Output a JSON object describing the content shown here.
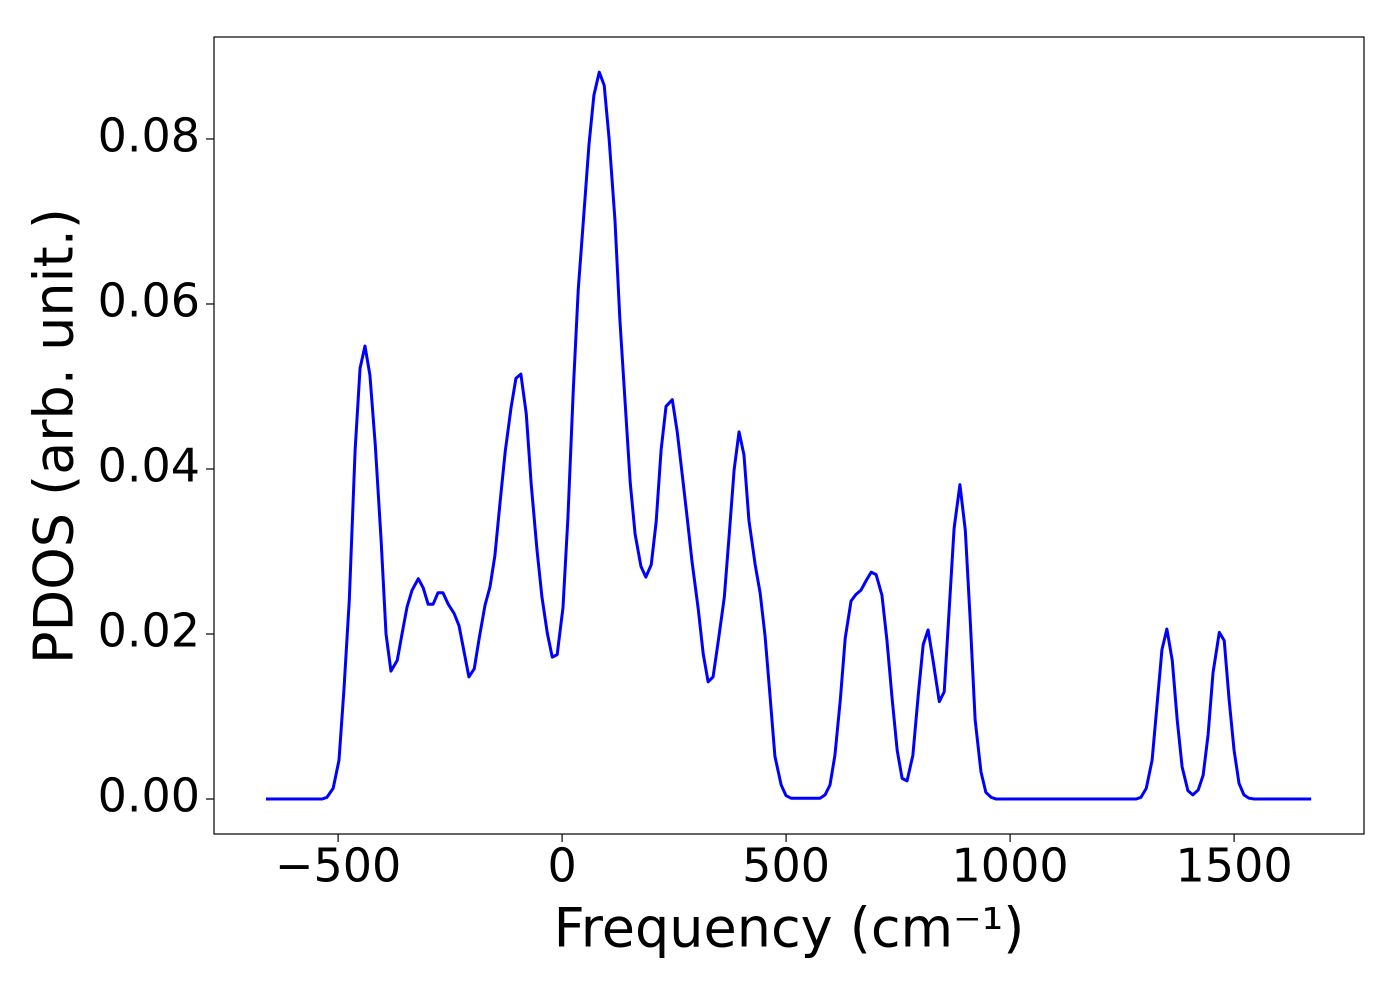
{
  "chart_data": {
    "type": "line",
    "xlabel": "Frequency (cm⁻¹)",
    "ylabel": "PDOS (arb. unit.)",
    "xlim": [
      -777,
      1790
    ],
    "ylim": [
      -0.00424,
      0.09236
    ],
    "xticks": [
      {
        "value": -500,
        "label": "−500"
      },
      0,
      500,
      1000,
      1500
    ],
    "yticks": [
      {
        "value": 0,
        "label": "0.00"
      },
      {
        "value": 0.02,
        "label": "0.02"
      },
      {
        "value": 0.04,
        "label": "0.04"
      },
      {
        "value": 0.06,
        "label": "0.06"
      },
      {
        "value": 0.08,
        "label": "0.08"
      }
    ],
    "grid": false,
    "series": [
      {
        "color": "#0000ff",
        "x": [
          -661,
          -536,
          -525,
          -511,
          -498,
          -487,
          -475,
          -462,
          -451,
          -440,
          -429,
          -417,
          -404,
          -393,
          -382,
          -368,
          -357,
          -346,
          -335,
          -321,
          -310,
          -299,
          -288,
          -277,
          -266,
          -254,
          -241,
          -230,
          -219,
          -208,
          -196,
          -185,
          -172,
          -161,
          -150,
          -138,
          -127,
          -114,
          -103,
          -92,
          -80,
          -69,
          -56,
          -45,
          -33,
          -22,
          -11,
          2,
          13,
          25,
          36,
          49,
          60,
          71,
          83,
          94,
          105,
          118,
          129,
          141,
          152,
          163,
          176,
          187,
          199,
          210,
          221,
          232,
          246,
          257,
          268,
          279,
          290,
          304,
          315,
          326,
          337,
          348,
          362,
          373,
          384,
          395,
          406,
          417,
          431,
          442,
          453,
          464,
          475,
          489,
          500,
          511,
          576,
          587,
          598,
          609,
          621,
          632,
          645,
          656,
          667,
          679,
          690,
          701,
          714,
          725,
          737,
          748,
          759,
          770,
          783,
          795,
          806,
          817,
          828,
          842,
          853,
          864,
          875,
          888,
          900,
          911,
          922,
          935,
          946,
          958,
          969,
          1281,
          1292,
          1304,
          1317,
          1328,
          1339,
          1350,
          1362,
          1373,
          1384,
          1397,
          1408,
          1420,
          1431,
          1442,
          1453,
          1467,
          1478,
          1489,
          1500,
          1511,
          1522,
          1533,
          1545,
          1672
        ],
        "values": [
          0,
          0,
          0.0002,
          0.0013,
          0.0047,
          0.0132,
          0.0241,
          0.0423,
          0.0522,
          0.0549,
          0.0514,
          0.0429,
          0.0314,
          0.02,
          0.0155,
          0.0168,
          0.0201,
          0.0233,
          0.0253,
          0.0267,
          0.0256,
          0.0236,
          0.0236,
          0.025,
          0.025,
          0.0236,
          0.0225,
          0.021,
          0.0179,
          0.0148,
          0.0158,
          0.0195,
          0.0235,
          0.0257,
          0.0295,
          0.0362,
          0.0421,
          0.0474,
          0.051,
          0.0515,
          0.0467,
          0.0382,
          0.0302,
          0.0245,
          0.0201,
          0.0172,
          0.0175,
          0.0232,
          0.0341,
          0.0496,
          0.0617,
          0.0712,
          0.0793,
          0.0853,
          0.0881,
          0.0865,
          0.08,
          0.0702,
          0.0581,
          0.0478,
          0.0384,
          0.0321,
          0.0282,
          0.0269,
          0.0284,
          0.0336,
          0.0423,
          0.0476,
          0.0484,
          0.0445,
          0.0394,
          0.0342,
          0.0288,
          0.023,
          0.0176,
          0.0142,
          0.0148,
          0.0189,
          0.0244,
          0.032,
          0.0399,
          0.0445,
          0.0417,
          0.0338,
          0.0284,
          0.025,
          0.0198,
          0.0126,
          0.0052,
          0.0017,
          0.0004,
          0.0001,
          0.0001,
          0.0005,
          0.0017,
          0.0053,
          0.012,
          0.0195,
          0.024,
          0.0248,
          0.0253,
          0.0265,
          0.0275,
          0.0272,
          0.0247,
          0.0193,
          0.012,
          0.0059,
          0.0025,
          0.0022,
          0.0053,
          0.0126,
          0.0187,
          0.0205,
          0.0168,
          0.0118,
          0.013,
          0.0229,
          0.0328,
          0.0381,
          0.0326,
          0.0217,
          0.0096,
          0.0033,
          0.0008,
          0.0002,
          0,
          0,
          0.0002,
          0.0013,
          0.0047,
          0.0114,
          0.0181,
          0.0206,
          0.0168,
          0.0096,
          0.0039,
          0.001,
          0.0005,
          0.0011,
          0.0029,
          0.0078,
          0.0153,
          0.0202,
          0.0192,
          0.012,
          0.0059,
          0.0019,
          0.0005,
          0.0001,
          0,
          0
        ]
      }
    ]
  }
}
